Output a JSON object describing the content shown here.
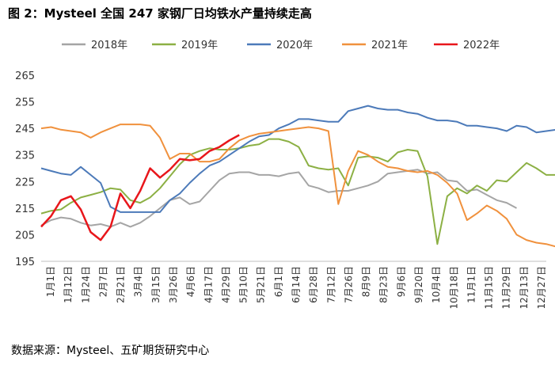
{
  "title": "图 2：Mysteel 全国 247 家钢厂日均铁水产量持续走高",
  "source": "数据来源：Mysteel、五矿期货研究中心",
  "chart_data": {
    "type": "line",
    "ylim": [
      195,
      265
    ],
    "yticks": [
      "195",
      "205",
      "215",
      "225",
      "235",
      "245",
      "255",
      "265"
    ],
    "xlim": [
      1,
      52
    ],
    "x_tick_labels": [
      "1月1日",
      "1月12日",
      "1月24日",
      "2月7日",
      "2月21日",
      "3月4日",
      "3月15日",
      "3月26日",
      "4月6日",
      "4月17日",
      "4月29日",
      "5月10日",
      "5月21日",
      "6月1日",
      "6月14日",
      "6月28日",
      "7月12日",
      "7月26日",
      "8月9日",
      "8月23日",
      "9月6日",
      "9月20日",
      "10月4日",
      "10月18日",
      "11月1日",
      "11月15日",
      "11月29日",
      "12月13日",
      "12月27日"
    ],
    "grid": false,
    "legend": "top",
    "series": [
      {
        "name": "2018年",
        "color": "#a5a5a5",
        "values": [
          208.5,
          210.5,
          211.5,
          211,
          209.5,
          208.5,
          209,
          208,
          209.5,
          208,
          209.5,
          212,
          215,
          218,
          219,
          216.5,
          217.5,
          221.5,
          225.5,
          228,
          228.5,
          228.5,
          227.5,
          227.5,
          227,
          228,
          228.5,
          223.5,
          222.5,
          221,
          221.5,
          221.5,
          222.5,
          223.5,
          225,
          228,
          228.5,
          229,
          229.5,
          228,
          228.5,
          225.5,
          225,
          221.5,
          222,
          220,
          218,
          217,
          215
        ]
      },
      {
        "name": "2019年",
        "color": "#8cb044",
        "values": [
          213,
          214,
          214.5,
          217,
          219,
          220,
          221,
          222.5,
          222,
          218,
          217,
          219,
          222.5,
          227,
          231.5,
          235,
          236.5,
          237.5,
          237,
          237,
          237.5,
          238.5,
          239,
          241,
          241,
          240,
          238,
          231,
          230,
          229.5,
          230,
          223.5,
          234,
          234.5,
          234,
          232.5,
          236,
          237,
          236.5,
          227,
          201.5,
          219.5,
          222.5,
          220.5,
          223.5,
          221.5,
          225.5,
          225,
          228.5,
          232,
          230,
          227.5,
          227.5
        ]
      },
      {
        "name": "2020年",
        "color": "#4c7ab9",
        "values": [
          230,
          229,
          228,
          227.5,
          230.5,
          227.5,
          224.5,
          215.5,
          213.5,
          213.5,
          213.5,
          213.5,
          213.5,
          218,
          220.5,
          224.5,
          228,
          231,
          232.5,
          235,
          237.5,
          240,
          242,
          242.5,
          245,
          246.5,
          248.5,
          248.5,
          248,
          247.5,
          247.5,
          251.5,
          252.5,
          253.5,
          252.5,
          252,
          252,
          251,
          250.5,
          249,
          248,
          248,
          247.5,
          246,
          246,
          245.5,
          245,
          244,
          246,
          245.5,
          243.5,
          244,
          244.5
        ]
      },
      {
        "name": "2021年",
        "color": "#f0913d",
        "values": [
          245,
          245.5,
          244.5,
          244,
          243.5,
          241.5,
          243.5,
          245,
          246.5,
          246.5,
          246.5,
          246,
          241.5,
          233.5,
          235.5,
          235.5,
          232.5,
          232.5,
          233.5,
          237.5,
          240.5,
          242,
          243,
          243.5,
          244,
          244.5,
          245,
          245.5,
          245,
          244,
          216.5,
          229,
          236.5,
          235,
          232.5,
          230.5,
          230,
          229,
          228.5,
          229,
          227.5,
          224.5,
          220.5,
          210.5,
          213,
          216,
          214,
          211,
          205,
          203,
          202,
          201.5,
          200.5,
          198.5,
          199,
          199,
          203
        ]
      },
      {
        "name": "2022年",
        "color": "#e8161b",
        "values": [
          208,
          212,
          218,
          219.5,
          214.5,
          206,
          203,
          208,
          220.5,
          215,
          221.5,
          230,
          226.5,
          229.5,
          233.5,
          233,
          233.5,
          236.5,
          238,
          240.5,
          242.5
        ]
      }
    ]
  }
}
